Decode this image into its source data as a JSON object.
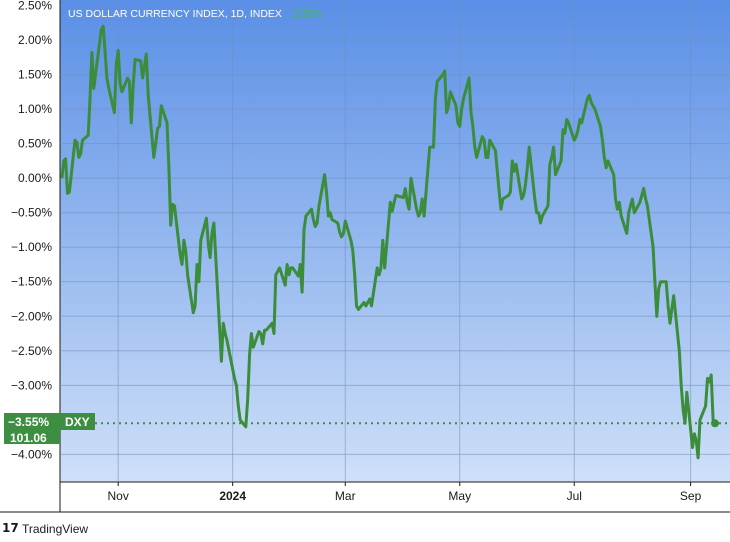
{
  "title": "US DOLLAR CURRENCY INDEX, 1D, INDEX",
  "change": "−3.55%",
  "footer": {
    "logo": "17",
    "brand": "TradingView"
  },
  "colors": {
    "bg_top": "#5a8fe6",
    "bg_bottom": "#cfe0f8",
    "line": "#3b8d3b",
    "badge": "#3e8e41",
    "dots": "#3e8e41"
  },
  "badge": {
    "change": "−3.55%",
    "symbol": "DXY",
    "price": "101.06"
  },
  "chart_data": {
    "type": "line",
    "title": "US DOLLAR CURRENCY INDEX, 1D, INDEX",
    "xlabel": "",
    "ylabel": "",
    "ylim": [
      -4.5,
      2.5
    ],
    "yticks": [
      2.5,
      2.0,
      1.5,
      1.0,
      0.5,
      0.0,
      -0.5,
      -1.0,
      -1.5,
      -2.0,
      -2.5,
      -3.0,
      -4.0
    ],
    "ytick_labels": [
      "2.50%",
      "2.00%",
      "1.50%",
      "1.00%",
      "0.50%",
      "0.00%",
      "−0.50%",
      "−1.00%",
      "−1.50%",
      "−2.00%",
      "−2.50%",
      "−3.00%",
      "−4.00%"
    ],
    "xlim": [
      "2023-10-01",
      "2024-09-14"
    ],
    "xticks": [
      "2023-11-01",
      "2024-01-01",
      "2024-03-01",
      "2024-05-01",
      "2024-07-01",
      "2024-09-01"
    ],
    "xtick_labels": [
      "Nov",
      "2024",
      "Mar",
      "May",
      "Jul",
      "Sep"
    ],
    "last_value": -3.55,
    "last_price": 101.06,
    "grid": true,
    "series": [
      {
        "values": [
          [
            "2023-10-02",
            0.0
          ],
          [
            "2023-10-03",
            0.25
          ],
          [
            "2023-10-04",
            0.28
          ],
          [
            "2023-10-05",
            -0.22
          ],
          [
            "2023-10-06",
            -0.2
          ],
          [
            "2023-10-09",
            0.55
          ],
          [
            "2023-10-10",
            0.52
          ],
          [
            "2023-10-11",
            0.3
          ],
          [
            "2023-10-12",
            0.35
          ],
          [
            "2023-10-13",
            0.55
          ],
          [
            "2023-10-16",
            0.62
          ],
          [
            "2023-10-17",
            1.15
          ],
          [
            "2023-10-18",
            1.82
          ],
          [
            "2023-10-19",
            1.3
          ],
          [
            "2023-10-20",
            1.52
          ],
          [
            "2023-10-23",
            2.15
          ],
          [
            "2023-10-24",
            2.2
          ],
          [
            "2023-10-25",
            1.85
          ],
          [
            "2023-10-26",
            1.45
          ],
          [
            "2023-10-27",
            1.3
          ],
          [
            "2023-10-30",
            0.95
          ],
          [
            "2023-10-31",
            1.65
          ],
          [
            "2023-11-01",
            1.85
          ],
          [
            "2023-11-02",
            1.38
          ],
          [
            "2023-11-03",
            1.25
          ],
          [
            "2023-11-06",
            1.45
          ],
          [
            "2023-11-07",
            1.4
          ],
          [
            "2023-11-08",
            0.8
          ],
          [
            "2023-11-09",
            1.35
          ],
          [
            "2023-11-10",
            1.72
          ],
          [
            "2023-11-13",
            1.7
          ],
          [
            "2023-11-14",
            1.45
          ],
          [
            "2023-11-15",
            1.62
          ],
          [
            "2023-11-16",
            1.8
          ],
          [
            "2023-11-17",
            1.2
          ],
          [
            "2023-11-20",
            0.3
          ],
          [
            "2023-11-21",
            0.5
          ],
          [
            "2023-11-22",
            0.72
          ],
          [
            "2023-11-23",
            0.75
          ],
          [
            "2023-11-24",
            1.05
          ],
          [
            "2023-11-27",
            0.8
          ],
          [
            "2023-11-28",
            0.15
          ],
          [
            "2023-11-29",
            -0.68
          ],
          [
            "2023-11-30",
            -0.38
          ],
          [
            "2023-12-01",
            -0.4
          ],
          [
            "2023-12-04",
            -1.1
          ],
          [
            "2023-12-05",
            -1.25
          ],
          [
            "2023-12-06",
            -0.9
          ],
          [
            "2023-12-07",
            -1.05
          ],
          [
            "2023-12-08",
            -1.4
          ],
          [
            "2023-12-11",
            -1.95
          ],
          [
            "2023-12-12",
            -1.85
          ],
          [
            "2023-12-13",
            -1.25
          ],
          [
            "2023-12-14",
            -1.5
          ],
          [
            "2023-12-15",
            -0.9
          ],
          [
            "2023-12-18",
            -0.58
          ],
          [
            "2023-12-19",
            -0.95
          ],
          [
            "2023-12-20",
            -1.15
          ],
          [
            "2023-12-21",
            -0.8
          ],
          [
            "2023-12-22",
            -0.65
          ],
          [
            "2023-12-26",
            -2.65
          ],
          [
            "2023-12-27",
            -2.1
          ],
          [
            "2023-12-28",
            -2.25
          ],
          [
            "2023-12-29",
            -2.35
          ],
          [
            "2024-01-02",
            -2.9
          ],
          [
            "2024-01-03",
            -3.0
          ],
          [
            "2024-01-04",
            -3.3
          ],
          [
            "2024-01-05",
            -3.5
          ],
          [
            "2024-01-08",
            -3.6
          ],
          [
            "2024-01-09",
            -3.2
          ],
          [
            "2024-01-10",
            -2.55
          ],
          [
            "2024-01-11",
            -2.25
          ],
          [
            "2024-01-12",
            -2.45
          ],
          [
            "2024-01-15",
            -2.22
          ],
          [
            "2024-01-16",
            -2.25
          ],
          [
            "2024-01-17",
            -2.4
          ],
          [
            "2024-01-18",
            -2.2
          ],
          [
            "2024-01-19",
            -2.2
          ],
          [
            "2024-01-22",
            -2.1
          ],
          [
            "2024-01-23",
            -2.25
          ],
          [
            "2024-01-24",
            -1.4
          ],
          [
            "2024-01-25",
            -1.35
          ],
          [
            "2024-01-26",
            -1.3
          ],
          [
            "2024-01-29",
            -1.55
          ],
          [
            "2024-01-30",
            -1.25
          ],
          [
            "2024-01-31",
            -1.4
          ],
          [
            "2024-02-01",
            -1.3
          ],
          [
            "2024-02-02",
            -1.3
          ],
          [
            "2024-02-05",
            -1.42
          ],
          [
            "2024-02-06",
            -1.25
          ],
          [
            "2024-02-07",
            -1.65
          ],
          [
            "2024-02-08",
            -0.75
          ],
          [
            "2024-02-09",
            -0.55
          ],
          [
            "2024-02-12",
            -0.45
          ],
          [
            "2024-02-13",
            -0.6
          ],
          [
            "2024-02-14",
            -0.7
          ],
          [
            "2024-02-15",
            -0.65
          ],
          [
            "2024-02-16",
            -0.4
          ],
          [
            "2024-02-19",
            0.05
          ],
          [
            "2024-02-20",
            -0.2
          ],
          [
            "2024-02-21",
            -0.55
          ],
          [
            "2024-02-22",
            -0.5
          ],
          [
            "2024-02-23",
            -0.6
          ],
          [
            "2024-02-26",
            -0.65
          ],
          [
            "2024-02-27",
            -0.78
          ],
          [
            "2024-02-28",
            -0.85
          ],
          [
            "2024-02-29",
            -0.8
          ],
          [
            "2024-03-01",
            -0.62
          ],
          [
            "2024-03-04",
            -0.9
          ],
          [
            "2024-03-05",
            -1.05
          ],
          [
            "2024-03-06",
            -1.4
          ],
          [
            "2024-03-07",
            -1.85
          ],
          [
            "2024-03-08",
            -1.9
          ],
          [
            "2024-03-11",
            -1.8
          ],
          [
            "2024-03-12",
            -1.85
          ],
          [
            "2024-03-13",
            -1.8
          ],
          [
            "2024-03-14",
            -1.75
          ],
          [
            "2024-03-15",
            -1.85
          ],
          [
            "2024-03-18",
            -1.3
          ],
          [
            "2024-03-19",
            -1.4
          ],
          [
            "2024-03-20",
            -1.3
          ],
          [
            "2024-03-21",
            -0.9
          ],
          [
            "2024-03-22",
            -1.3
          ],
          [
            "2024-03-25",
            -0.35
          ],
          [
            "2024-03-26",
            -0.48
          ],
          [
            "2024-03-27",
            -0.35
          ],
          [
            "2024-03-28",
            -0.25
          ],
          [
            "2024-04-01",
            -0.28
          ],
          [
            "2024-04-02",
            -0.15
          ],
          [
            "2024-04-03",
            -0.35
          ],
          [
            "2024-04-04",
            -0.45
          ],
          [
            "2024-04-05",
            0.0
          ],
          [
            "2024-04-08",
            -0.45
          ],
          [
            "2024-04-09",
            -0.55
          ],
          [
            "2024-04-10",
            -0.5
          ],
          [
            "2024-04-11",
            -0.3
          ],
          [
            "2024-04-12",
            -0.55
          ],
          [
            "2024-04-15",
            0.45
          ],
          [
            "2024-04-16",
            0.45
          ],
          [
            "2024-04-17",
            0.45
          ],
          [
            "2024-04-18",
            1.15
          ],
          [
            "2024-04-19",
            1.4
          ],
          [
            "2024-04-22",
            1.5
          ],
          [
            "2024-04-23",
            1.55
          ],
          [
            "2024-04-24",
            0.95
          ],
          [
            "2024-04-25",
            1.05
          ],
          [
            "2024-04-26",
            1.25
          ],
          [
            "2024-04-29",
            1.05
          ],
          [
            "2024-04-30",
            0.8
          ],
          [
            "2024-05-01",
            0.75
          ],
          [
            "2024-05-02",
            1.0
          ],
          [
            "2024-05-03",
            1.15
          ],
          [
            "2024-05-06",
            1.45
          ],
          [
            "2024-05-07",
            0.95
          ],
          [
            "2024-05-08",
            0.75
          ],
          [
            "2024-05-09",
            0.45
          ],
          [
            "2024-05-10",
            0.3
          ],
          [
            "2024-05-13",
            0.6
          ],
          [
            "2024-05-14",
            0.55
          ],
          [
            "2024-05-15",
            0.3
          ],
          [
            "2024-05-16",
            0.3
          ],
          [
            "2024-05-17",
            0.55
          ],
          [
            "2024-05-20",
            0.4
          ],
          [
            "2024-05-21",
            0.1
          ],
          [
            "2024-05-22",
            -0.2
          ],
          [
            "2024-05-23",
            -0.45
          ],
          [
            "2024-05-24",
            -0.3
          ],
          [
            "2024-05-27",
            -0.25
          ],
          [
            "2024-05-28",
            -0.2
          ],
          [
            "2024-05-29",
            0.25
          ],
          [
            "2024-05-30",
            0.1
          ],
          [
            "2024-05-31",
            0.2
          ],
          [
            "2024-06-03",
            -0.3
          ],
          [
            "2024-06-04",
            -0.25
          ],
          [
            "2024-06-05",
            -0.1
          ],
          [
            "2024-06-06",
            0.15
          ],
          [
            "2024-06-07",
            0.45
          ],
          [
            "2024-06-10",
            -0.3
          ],
          [
            "2024-06-11",
            -0.5
          ],
          [
            "2024-06-12",
            -0.5
          ],
          [
            "2024-06-13",
            -0.65
          ],
          [
            "2024-06-14",
            -0.55
          ],
          [
            "2024-06-17",
            -0.4
          ],
          [
            "2024-06-18",
            0.2
          ],
          [
            "2024-06-19",
            0.3
          ],
          [
            "2024-06-20",
            0.45
          ],
          [
            "2024-06-21",
            0.05
          ],
          [
            "2024-06-24",
            0.25
          ],
          [
            "2024-06-25",
            0.7
          ],
          [
            "2024-06-26",
            0.65
          ],
          [
            "2024-06-27",
            0.85
          ],
          [
            "2024-06-28",
            0.8
          ],
          [
            "2024-07-01",
            0.55
          ],
          [
            "2024-07-02",
            0.6
          ],
          [
            "2024-07-03",
            0.7
          ],
          [
            "2024-07-04",
            0.85
          ],
          [
            "2024-07-05",
            0.8
          ],
          [
            "2024-07-08",
            1.15
          ],
          [
            "2024-07-09",
            1.2
          ],
          [
            "2024-07-10",
            1.1
          ],
          [
            "2024-07-11",
            1.05
          ],
          [
            "2024-07-12",
            1.0
          ],
          [
            "2024-07-15",
            0.75
          ],
          [
            "2024-07-16",
            0.55
          ],
          [
            "2024-07-17",
            0.3
          ],
          [
            "2024-07-18",
            0.15
          ],
          [
            "2024-07-19",
            0.25
          ],
          [
            "2024-07-22",
            0.05
          ],
          [
            "2024-07-23",
            -0.3
          ],
          [
            "2024-07-24",
            -0.45
          ],
          [
            "2024-07-25",
            -0.35
          ],
          [
            "2024-07-26",
            -0.55
          ],
          [
            "2024-07-29",
            -0.8
          ],
          [
            "2024-07-30",
            -0.5
          ],
          [
            "2024-07-31",
            -0.4
          ],
          [
            "2024-08-01",
            -0.3
          ],
          [
            "2024-08-02",
            -0.5
          ],
          [
            "2024-08-05",
            -0.35
          ],
          [
            "2024-08-06",
            -0.25
          ],
          [
            "2024-08-07",
            -0.15
          ],
          [
            "2024-08-08",
            -0.3
          ],
          [
            "2024-08-09",
            -0.4
          ],
          [
            "2024-08-12",
            -1.0
          ],
          [
            "2024-08-13",
            -1.5
          ],
          [
            "2024-08-14",
            -2.0
          ],
          [
            "2024-08-15",
            -1.6
          ],
          [
            "2024-08-16",
            -1.5
          ],
          [
            "2024-08-19",
            -1.5
          ],
          [
            "2024-08-20",
            -1.85
          ],
          [
            "2024-08-21",
            -2.1
          ],
          [
            "2024-08-22",
            -1.9
          ],
          [
            "2024-08-23",
            -1.7
          ],
          [
            "2024-08-26",
            -2.5
          ],
          [
            "2024-08-27",
            -3.0
          ],
          [
            "2024-08-28",
            -3.35
          ],
          [
            "2024-08-29",
            -3.55
          ],
          [
            "2024-08-30",
            -3.1
          ],
          [
            "2024-09-02",
            -3.9
          ],
          [
            "2024-09-03",
            -3.7
          ],
          [
            "2024-09-04",
            -3.8
          ],
          [
            "2024-09-05",
            -4.05
          ],
          [
            "2024-09-06",
            -3.5
          ],
          [
            "2024-09-09",
            -3.3
          ],
          [
            "2024-09-10",
            -2.9
          ],
          [
            "2024-09-11",
            -2.95
          ],
          [
            "2024-09-12",
            -2.85
          ],
          [
            "2024-09-13",
            -3.5
          ],
          [
            "2024-09-14",
            -3.55
          ]
        ]
      }
    ]
  }
}
